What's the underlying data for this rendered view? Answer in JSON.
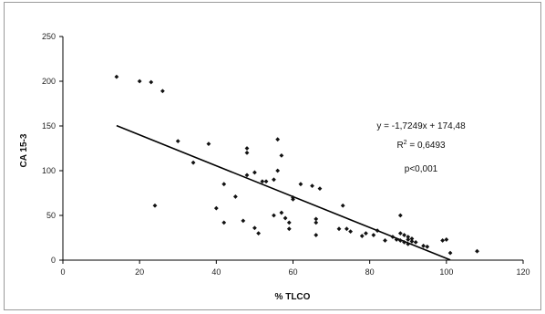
{
  "chart_data": {
    "type": "scatter",
    "title": "",
    "xlabel": "% TLCO",
    "ylabel": "CA 15-3",
    "xlim": [
      0,
      120
    ],
    "ylim": [
      0,
      250
    ],
    "xticks": [
      "0",
      "20",
      "40",
      "60",
      "80",
      "100",
      "120"
    ],
    "yticks": [
      "0",
      "50",
      "100",
      "150",
      "200",
      "250"
    ],
    "grid": false,
    "legend": "none",
    "colors": {
      "points": "#111111",
      "trendline": "#000000"
    },
    "series": [
      {
        "values": [
          [
            14,
            205
          ],
          [
            20,
            200
          ],
          [
            23,
            199
          ],
          [
            26,
            189
          ],
          [
            24,
            61
          ],
          [
            30,
            133
          ],
          [
            34,
            109
          ],
          [
            38,
            130
          ],
          [
            40,
            58
          ],
          [
            42,
            85
          ],
          [
            42,
            42
          ],
          [
            45,
            71
          ],
          [
            47,
            44
          ],
          [
            48,
            125
          ],
          [
            48,
            120
          ],
          [
            48,
            95
          ],
          [
            50,
            98
          ],
          [
            50,
            36
          ],
          [
            51,
            30
          ],
          [
            52,
            88
          ],
          [
            53,
            88
          ],
          [
            55,
            90
          ],
          [
            55,
            50
          ],
          [
            56,
            135
          ],
          [
            56,
            100
          ],
          [
            57,
            117
          ],
          [
            57,
            53
          ],
          [
            58,
            47
          ],
          [
            59,
            42
          ],
          [
            59,
            35
          ],
          [
            60,
            70
          ],
          [
            60,
            68
          ],
          [
            62,
            85
          ],
          [
            65,
            83
          ],
          [
            66,
            46
          ],
          [
            66,
            42
          ],
          [
            66,
            28
          ],
          [
            67,
            80
          ],
          [
            72,
            35
          ],
          [
            73,
            61
          ],
          [
            74,
            35
          ],
          [
            75,
            32
          ],
          [
            78,
            27
          ],
          [
            79,
            30
          ],
          [
            81,
            28
          ],
          [
            82,
            33
          ],
          [
            84,
            22
          ],
          [
            86,
            26
          ],
          [
            87,
            23
          ],
          [
            88,
            50
          ],
          [
            88,
            30
          ],
          [
            88,
            22
          ],
          [
            89,
            28
          ],
          [
            89,
            20
          ],
          [
            90,
            26
          ],
          [
            90,
            23
          ],
          [
            90,
            18
          ],
          [
            91,
            24
          ],
          [
            91,
            21
          ],
          [
            92,
            20
          ],
          [
            94,
            16
          ],
          [
            95,
            15
          ],
          [
            99,
            22
          ],
          [
            100,
            23
          ],
          [
            101,
            8
          ],
          [
            108,
            10
          ]
        ]
      }
    ],
    "trendline": {
      "slope": -1.7249,
      "intercept": 174.48,
      "x_range": [
        14,
        101
      ]
    },
    "annotations": {
      "equation": "y = -1,7249x + 174,48",
      "r2_prefix": "R",
      "r2_sup": "2",
      "r2_suffix": " = 0,6493",
      "pvalue": "p<0,001"
    }
  }
}
